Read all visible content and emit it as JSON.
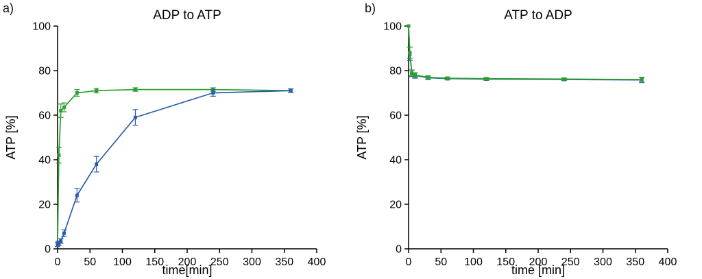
{
  "figure": {
    "background": "#ffffff"
  },
  "chart_data": [
    {
      "type": "line",
      "corner_label": "a)",
      "title": "ADP to ATP",
      "xlabel": "time[min]",
      "ylabel": "ATP [%]",
      "xlim": [
        0,
        400
      ],
      "ylim": [
        0,
        100
      ],
      "xticks": [
        0,
        50,
        100,
        150,
        200,
        250,
        300,
        350,
        400
      ],
      "yticks": [
        0,
        20,
        40,
        60,
        80,
        100
      ],
      "grid": false,
      "legend": "none",
      "series": [
        {
          "name": "series-green",
          "color": "#2ca02c",
          "marker": "square",
          "x": [
            0,
            2,
            5,
            10,
            30,
            60,
            120,
            240,
            360
          ],
          "y": [
            2,
            42,
            62,
            63.5,
            70,
            71,
            71.5,
            71.5,
            71
          ],
          "yerr": [
            1,
            3.5,
            3,
            2,
            1.5,
            1,
            0.8,
            0.8,
            0.8
          ]
        },
        {
          "name": "series-blue",
          "color": "#2a5caa",
          "marker": "square",
          "x": [
            0,
            2,
            5,
            10,
            30,
            60,
            120,
            240,
            360
          ],
          "y": [
            2,
            2.5,
            3.5,
            7,
            24,
            38,
            59,
            70,
            71
          ],
          "yerr": [
            1,
            1,
            1,
            1.5,
            3,
            3.5,
            3.5,
            1.5,
            0.8
          ]
        }
      ]
    },
    {
      "type": "line",
      "corner_label": "b)",
      "title": "ATP to ADP",
      "xlabel": "time [min]",
      "ylabel": "ATP [%]",
      "xlim": [
        0,
        400
      ],
      "ylim": [
        0,
        100
      ],
      "xticks": [
        0,
        50,
        100,
        150,
        200,
        250,
        300,
        350,
        400
      ],
      "yticks": [
        0,
        20,
        40,
        60,
        80,
        100
      ],
      "grid": false,
      "legend": "none",
      "series": [
        {
          "name": "series-blue",
          "color": "#2a5caa",
          "marker": "square",
          "x": [
            0,
            2,
            5,
            10,
            30,
            60,
            120,
            240,
            360
          ],
          "y": [
            100,
            87.5,
            78.8,
            77.8,
            76.8,
            76.4,
            76.2,
            76,
            75.8
          ],
          "yerr": [
            0,
            3,
            1.5,
            1.2,
            0.8,
            0.6,
            0.6,
            0.5,
            1.2
          ]
        },
        {
          "name": "series-green",
          "color": "#2ca02c",
          "marker": "square",
          "x": [
            0,
            2,
            5,
            10,
            30,
            60,
            120,
            240,
            360
          ],
          "y": [
            100,
            88,
            79,
            78,
            77,
            76.6,
            76.4,
            76.2,
            76
          ],
          "yerr": [
            0,
            2.5,
            1.2,
            1,
            0.7,
            0.5,
            0.5,
            0.5,
            0.8
          ]
        }
      ]
    }
  ]
}
